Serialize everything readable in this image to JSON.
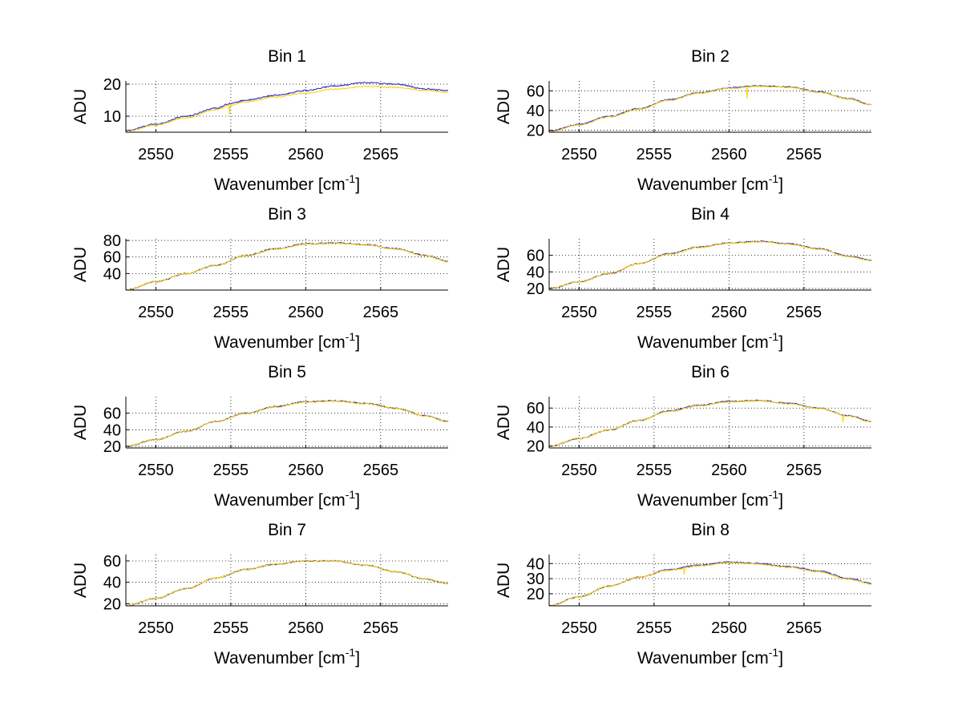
{
  "colors": {
    "series_blue": "#1f1fbf",
    "series_yellow": "#ffd000",
    "grid": "#000000"
  },
  "chart_data": [
    {
      "type": "line",
      "title": "Bin 1",
      "xlabel": "Wavenumber [cm",
      "xlabel_sup": "-1",
      "xlabel_close": "]",
      "ylabel": "ADU",
      "xlim": [
        2548,
        2569.5
      ],
      "ylim": [
        5,
        21
      ],
      "xticks": [
        2550,
        2555,
        2560,
        2565
      ],
      "yticks": [
        10,
        20
      ],
      "grid": true,
      "x": [
        2548,
        2550,
        2552,
        2554,
        2555,
        2556,
        2558,
        2560,
        2562,
        2564,
        2566,
        2568,
        2569.5
      ],
      "series": [
        {
          "name": "blue",
          "color": "#1f1fbf",
          "values": [
            5.5,
            7.5,
            10,
            12.5,
            14,
            15,
            16.5,
            18,
            19.5,
            20.5,
            20,
            18.5,
            18
          ]
        },
        {
          "name": "yellow",
          "color": "#ffd000",
          "values": [
            5.3,
            7.2,
            9.5,
            12,
            13.5,
            14.5,
            16,
            17.2,
            18.5,
            19.3,
            19,
            18,
            17.5
          ]
        }
      ],
      "spikes": [
        {
          "x": 2554.9,
          "depth": 3
        }
      ]
    },
    {
      "type": "line",
      "title": "Bin 2",
      "xlabel": "Wavenumber [cm",
      "xlabel_sup": "-1",
      "xlabel_close": "]",
      "ylabel": "ADU",
      "xlim": [
        2548,
        2569.5
      ],
      "ylim": [
        18,
        70
      ],
      "xticks": [
        2550,
        2555,
        2560,
        2565
      ],
      "yticks": [
        20,
        40,
        60
      ],
      "grid": true,
      "x": [
        2548,
        2550,
        2552,
        2554,
        2556,
        2558,
        2560,
        2562,
        2564,
        2566,
        2568,
        2569.5
      ],
      "series": [
        {
          "name": "blue",
          "color": "#1f1fbf",
          "values": [
            19,
            26,
            34,
            42,
            51,
            58,
            63,
            65,
            64,
            59,
            52,
            46
          ]
        },
        {
          "name": "yellow",
          "color": "#ffd000",
          "values": [
            18.5,
            25.5,
            33.5,
            41.5,
            50.5,
            57.5,
            62.5,
            64.5,
            63.5,
            58.5,
            51.5,
            45.5
          ]
        }
      ],
      "spikes": [
        {
          "x": 2561.2,
          "depth": 12
        }
      ]
    },
    {
      "type": "line",
      "title": "Bin 3",
      "xlabel": "Wavenumber [cm",
      "xlabel_sup": "-1",
      "xlabel_close": "]",
      "ylabel": "ADU",
      "xlim": [
        2548,
        2569.5
      ],
      "ylim": [
        20,
        82
      ],
      "xticks": [
        2550,
        2555,
        2560,
        2565
      ],
      "yticks": [
        40,
        60,
        80
      ],
      "grid": true,
      "x": [
        2548,
        2550,
        2552,
        2554,
        2556,
        2558,
        2560,
        2562,
        2564,
        2566,
        2568,
        2569.5
      ],
      "series": [
        {
          "name": "blue",
          "color": "#1f1fbf",
          "values": [
            20,
            30,
            40,
            50,
            62,
            70,
            76,
            77,
            75,
            70,
            62,
            55
          ]
        },
        {
          "name": "yellow",
          "color": "#ffd000",
          "values": [
            20,
            30,
            40,
            50,
            61.5,
            69.5,
            75.5,
            76.5,
            74.5,
            69.5,
            61.5,
            54.5
          ]
        }
      ],
      "spikes": []
    },
    {
      "type": "line",
      "title": "Bin 4",
      "xlabel": "Wavenumber [cm",
      "xlabel_sup": "-1",
      "xlabel_close": "]",
      "ylabel": "ADU",
      "xlim": [
        2548,
        2569.5
      ],
      "ylim": [
        18,
        80
      ],
      "xticks": [
        2550,
        2555,
        2560,
        2565
      ],
      "yticks": [
        20,
        40,
        60
      ],
      "grid": true,
      "x": [
        2548,
        2550,
        2552,
        2554,
        2556,
        2558,
        2560,
        2562,
        2564,
        2566,
        2568,
        2569.5
      ],
      "series": [
        {
          "name": "blue",
          "color": "#1f1fbf",
          "values": [
            20,
            28,
            38,
            50,
            62,
            70,
            75,
            77,
            74,
            68,
            59,
            54
          ]
        },
        {
          "name": "yellow",
          "color": "#ffd000",
          "values": [
            20,
            28,
            38,
            50,
            61.5,
            69.5,
            74.5,
            76.5,
            73.5,
            67.5,
            58.5,
            53.5
          ]
        }
      ],
      "spikes": []
    },
    {
      "type": "line",
      "title": "Bin 5",
      "xlabel": "Wavenumber [cm",
      "xlabel_sup": "-1",
      "xlabel_close": "]",
      "ylabel": "ADU",
      "xlim": [
        2548,
        2569.5
      ],
      "ylim": [
        18,
        80
      ],
      "xticks": [
        2550,
        2555,
        2560,
        2565
      ],
      "yticks": [
        20,
        40,
        60
      ],
      "grid": true,
      "x": [
        2548,
        2550,
        2552,
        2554,
        2556,
        2558,
        2560,
        2562,
        2564,
        2566,
        2568,
        2569.5
      ],
      "series": [
        {
          "name": "blue",
          "color": "#1f1fbf",
          "values": [
            20,
            28,
            38,
            50,
            60,
            68,
            74,
            75,
            72,
            66,
            57,
            50
          ]
        },
        {
          "name": "yellow",
          "color": "#ffd000",
          "values": [
            20,
            28,
            38,
            50,
            59.5,
            67.5,
            73.5,
            74.5,
            71.5,
            65.5,
            56.5,
            49.5
          ]
        }
      ],
      "spikes": []
    },
    {
      "type": "line",
      "title": "Bin 6",
      "xlabel": "Wavenumber [cm",
      "xlabel_sup": "-1",
      "xlabel_close": "]",
      "ylabel": "ADU",
      "xlim": [
        2548,
        2569.5
      ],
      "ylim": [
        18,
        72
      ],
      "xticks": [
        2550,
        2555,
        2560,
        2565
      ],
      "yticks": [
        20,
        40,
        60
      ],
      "grid": true,
      "x": [
        2548,
        2550,
        2552,
        2554,
        2556,
        2558,
        2560,
        2562,
        2564,
        2566,
        2568,
        2569.5
      ],
      "series": [
        {
          "name": "blue",
          "color": "#1f1fbf",
          "values": [
            20,
            28,
            37,
            47,
            57,
            63,
            67,
            68,
            65,
            60,
            52,
            46
          ]
        },
        {
          "name": "yellow",
          "color": "#ffd000",
          "values": [
            20,
            28,
            37,
            47,
            56.5,
            62.5,
            66.5,
            67.5,
            64.5,
            59.5,
            51.5,
            45.5
          ]
        }
      ],
      "spikes": [
        {
          "x": 2567.6,
          "depth": 7
        }
      ]
    },
    {
      "type": "line",
      "title": "Bin 7",
      "xlabel": "Wavenumber [cm",
      "xlabel_sup": "-1",
      "xlabel_close": "]",
      "ylabel": "ADU",
      "xlim": [
        2548,
        2569.5
      ],
      "ylim": [
        18,
        66
      ],
      "xticks": [
        2550,
        2555,
        2560,
        2565
      ],
      "yticks": [
        20,
        40,
        60
      ],
      "grid": true,
      "x": [
        2548,
        2550,
        2552,
        2554,
        2556,
        2558,
        2560,
        2562,
        2564,
        2566,
        2568,
        2569.5
      ],
      "series": [
        {
          "name": "blue",
          "color": "#1f1fbf",
          "values": [
            18,
            25,
            34,
            44,
            52,
            57,
            60,
            60,
            56,
            50,
            43,
            39
          ]
        },
        {
          "name": "yellow",
          "color": "#ffd000",
          "values": [
            18,
            25,
            34,
            44,
            52,
            57,
            60,
            60,
            56,
            50,
            43,
            39
          ]
        }
      ],
      "spikes": []
    },
    {
      "type": "line",
      "title": "Bin 8",
      "xlabel": "Wavenumber [cm",
      "xlabel_sup": "-1",
      "xlabel_close": "]",
      "ylabel": "ADU",
      "xlim": [
        2548,
        2569.5
      ],
      "ylim": [
        12,
        46
      ],
      "xticks": [
        2550,
        2555,
        2560,
        2565
      ],
      "yticks": [
        20,
        30,
        40
      ],
      "grid": true,
      "x": [
        2548,
        2550,
        2552,
        2554,
        2556,
        2558,
        2560,
        2562,
        2564,
        2566,
        2568,
        2569.5
      ],
      "series": [
        {
          "name": "blue",
          "color": "#1f1fbf",
          "values": [
            12,
            18,
            25,
            31,
            36,
            39,
            41,
            40,
            38,
            35,
            30,
            27
          ]
        },
        {
          "name": "yellow",
          "color": "#ffd000",
          "values": [
            12,
            18,
            25,
            31,
            35.5,
            38.5,
            40.5,
            39.5,
            37.5,
            34.5,
            29.5,
            26.5
          ]
        }
      ],
      "spikes": [
        {
          "x": 2557.0,
          "depth": 4
        }
      ]
    }
  ]
}
